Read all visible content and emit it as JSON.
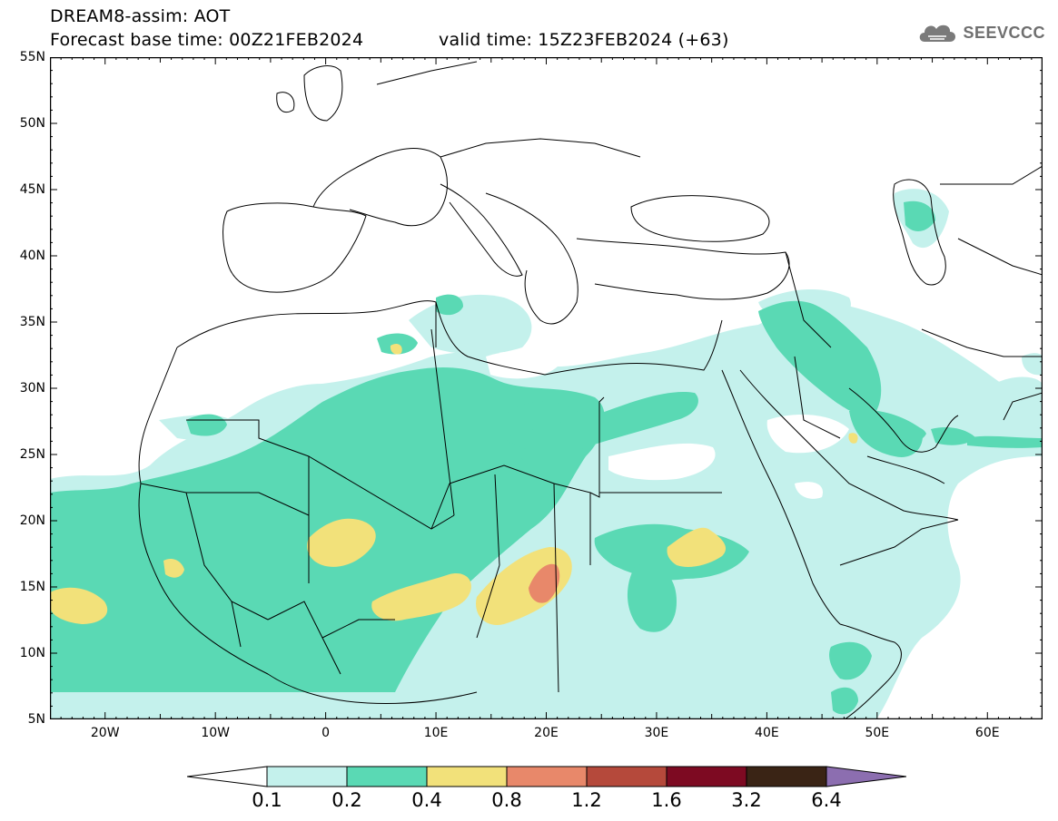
{
  "header": {
    "title_line1": "DREAM8-assim: AOT",
    "title_line2": "Forecast base time: 00Z21FEB2024",
    "valid_time": "valid time: 15Z23FEB2024 (+63)",
    "logo_text": "SEEVCCC",
    "logo_icon": "cloud-logo-icon"
  },
  "map": {
    "projection": "lat-lon",
    "lon_range": [
      -25,
      65
    ],
    "lat_range": [
      5,
      55
    ],
    "lat_labels": [
      "55N",
      "50N",
      "45N",
      "40N",
      "35N",
      "30N",
      "25N",
      "20N",
      "15N",
      "10N",
      "5N"
    ],
    "lon_labels": [
      "20W",
      "10W",
      "0",
      "10E",
      "20E",
      "30E",
      "40E",
      "50E",
      "60E"
    ],
    "variable": "AOT"
  },
  "colorbar": {
    "levels": [
      "0.1",
      "0.2",
      "0.4",
      "0.8",
      "1.2",
      "1.6",
      "3.2",
      "6.4"
    ],
    "colors": [
      "#ffffff",
      "#c4f1ec",
      "#5ad9b4",
      "#f2e17a",
      "#e8886a",
      "#b5493b",
      "#7d0a22",
      "#3a2415",
      "#8c6eb0"
    ]
  }
}
